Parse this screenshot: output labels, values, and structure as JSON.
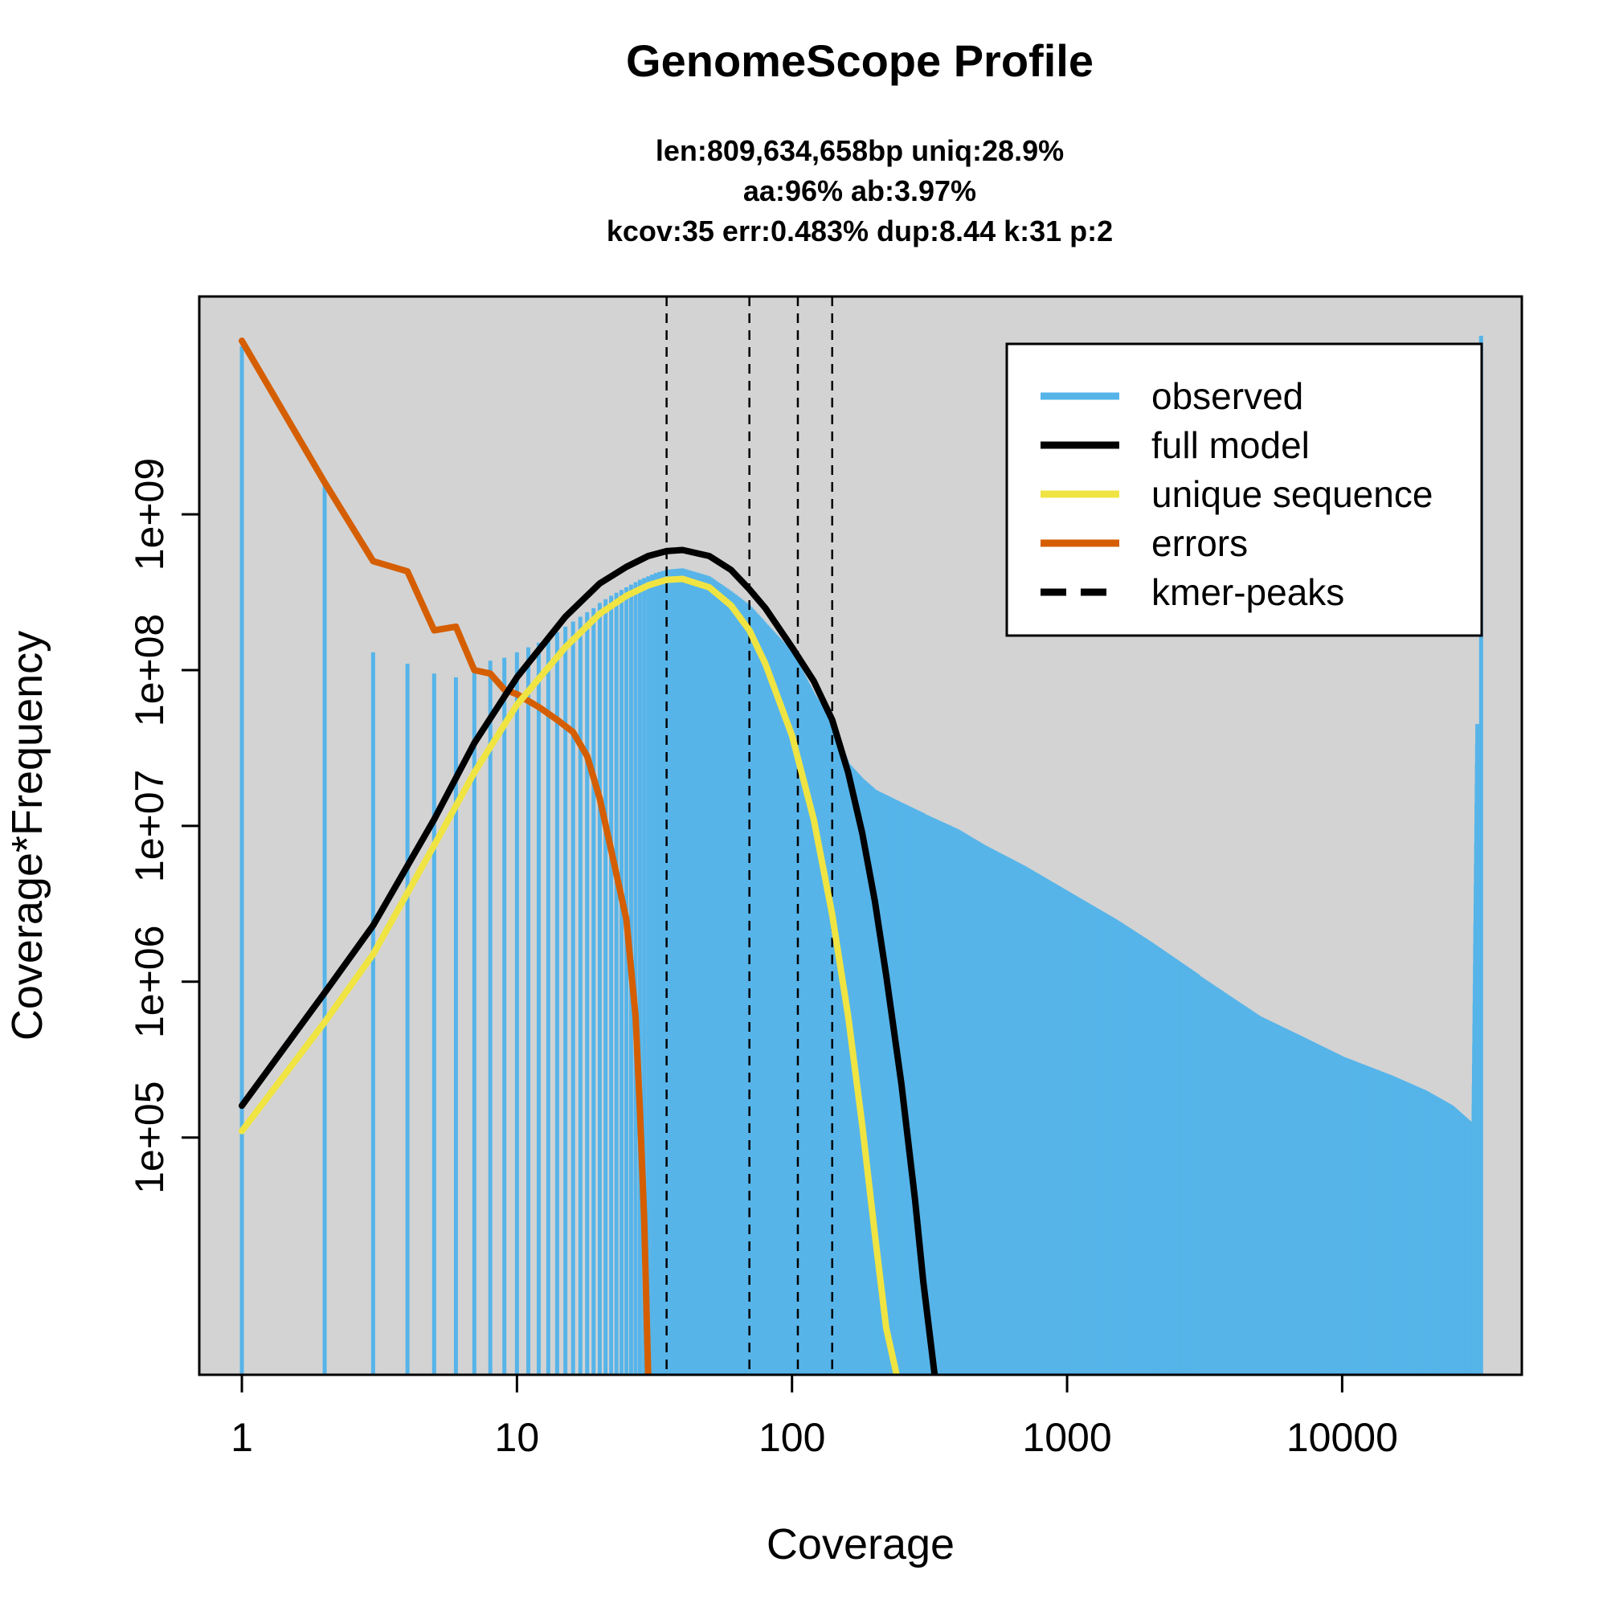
{
  "chart_data": {
    "type": "bar",
    "title": "GenomeScope Profile",
    "subtitle_lines": [
      "len:809,634,658bp uniq:28.9%",
      "aa:96% ab:3.97%",
      "kcov:35 err:0.483%  dup:8.44  k:31 p:2"
    ],
    "xlabel": "Coverage",
    "ylabel": "Coverage*Frequency",
    "x_scale": "log",
    "y_scale": "log",
    "xlim": [
      0.7,
      45000
    ],
    "ylim": [
      3000,
      25000000000
    ],
    "x_ticks": [
      1,
      10,
      100,
      1000,
      10000
    ],
    "x_tick_labels": [
      "1",
      "10",
      "100",
      "1000",
      "10000"
    ],
    "y_ticks": [
      100000,
      1000000,
      10000000,
      100000000,
      1000000000
    ],
    "y_tick_labels": [
      "1e+05",
      "1e+06",
      "1e+07",
      "1e+08",
      "1e+09"
    ],
    "background": "#d3d3d3",
    "kmer_peaks": [
      35,
      70,
      105,
      140
    ],
    "legend": {
      "placement": "top-right",
      "entries": [
        {
          "label": "observed",
          "color": "#56b4e9",
          "style": "solid"
        },
        {
          "label": "full model",
          "color": "#000000",
          "style": "solid"
        },
        {
          "label": "unique sequence",
          "color": "#f0e442",
          "style": "solid"
        },
        {
          "label": "errors",
          "color": "#d55e00",
          "style": "solid"
        },
        {
          "label": "kmer-peaks",
          "color": "#000000",
          "style": "dashed"
        }
      ]
    },
    "series": [
      {
        "name": "observed",
        "color": "#56b4e9",
        "kind": "bars",
        "points": [
          [
            1,
            12000000000
          ],
          [
            2,
            1600000000
          ],
          [
            3,
            130000000
          ],
          [
            4,
            110000000
          ],
          [
            5,
            95000000
          ],
          [
            6,
            90000000
          ],
          [
            7,
            100000000
          ],
          [
            8,
            115000000
          ],
          [
            9,
            120000000
          ],
          [
            10,
            130000000
          ],
          [
            11,
            140000000
          ],
          [
            12,
            150000000
          ],
          [
            13,
            160000000
          ],
          [
            14,
            175000000
          ],
          [
            15,
            190000000
          ],
          [
            16,
            205000000
          ],
          [
            17,
            220000000
          ],
          [
            18,
            235000000
          ],
          [
            19,
            250000000
          ],
          [
            20,
            270000000
          ],
          [
            22,
            300000000
          ],
          [
            25,
            340000000
          ],
          [
            28,
            380000000
          ],
          [
            32,
            420000000
          ],
          [
            35,
            440000000
          ],
          [
            40,
            450000000
          ],
          [
            50,
            400000000
          ],
          [
            60,
            320000000
          ],
          [
            70,
            260000000
          ],
          [
            80,
            200000000
          ],
          [
            100,
            130000000
          ],
          [
            120,
            70000000
          ],
          [
            140,
            45000000
          ],
          [
            160,
            25000000
          ],
          [
            180,
            20000000
          ],
          [
            200,
            17000000
          ],
          [
            250,
            14000000
          ],
          [
            300,
            12000000
          ],
          [
            400,
            9500000
          ],
          [
            500,
            7500000
          ],
          [
            700,
            5500000
          ],
          [
            1000,
            3800000
          ],
          [
            1500,
            2500000
          ],
          [
            2000,
            1800000
          ],
          [
            3000,
            1100000
          ],
          [
            5000,
            600000
          ],
          [
            7000,
            450000
          ],
          [
            10000,
            330000
          ],
          [
            15000,
            250000
          ],
          [
            20000,
            200000
          ],
          [
            25000,
            160000
          ],
          [
            30000,
            120000
          ],
          [
            32000,
            14000000000
          ]
        ]
      },
      {
        "name": "full model",
        "color": "#000000",
        "kind": "line",
        "points": [
          [
            1,
            160000
          ],
          [
            2,
            850000
          ],
          [
            3,
            2300000
          ],
          [
            5,
            11000000
          ],
          [
            7,
            34000000
          ],
          [
            10,
            90000000
          ],
          [
            15,
            220000000
          ],
          [
            20,
            360000000
          ],
          [
            25,
            460000000
          ],
          [
            30,
            540000000
          ],
          [
            35,
            580000000
          ],
          [
            40,
            590000000
          ],
          [
            50,
            540000000
          ],
          [
            60,
            440000000
          ],
          [
            70,
            330000000
          ],
          [
            80,
            250000000
          ],
          [
            100,
            140000000
          ],
          [
            120,
            85000000
          ],
          [
            140,
            48000000
          ],
          [
            160,
            22000000
          ],
          [
            180,
            9000000
          ],
          [
            200,
            3300000
          ],
          [
            220,
            1100000
          ],
          [
            250,
            220000
          ],
          [
            280,
            40000
          ],
          [
            300,
            12000
          ],
          [
            330,
            3000
          ]
        ]
      },
      {
        "name": "unique sequence",
        "color": "#f0e442",
        "kind": "line",
        "points": [
          [
            1,
            110000
          ],
          [
            2,
            550000
          ],
          [
            3,
            1500000
          ],
          [
            5,
            7500000
          ],
          [
            7,
            22000000
          ],
          [
            10,
            60000000
          ],
          [
            15,
            140000000
          ],
          [
            20,
            230000000
          ],
          [
            25,
            300000000
          ],
          [
            30,
            350000000
          ],
          [
            35,
            380000000
          ],
          [
            40,
            385000000
          ],
          [
            50,
            340000000
          ],
          [
            60,
            260000000
          ],
          [
            70,
            180000000
          ],
          [
            80,
            110000000
          ],
          [
            100,
            38000000
          ],
          [
            120,
            11000000
          ],
          [
            140,
            2700000
          ],
          [
            160,
            600000
          ],
          [
            180,
            120000
          ],
          [
            200,
            24000
          ],
          [
            220,
            6000
          ],
          [
            240,
            3000
          ]
        ]
      },
      {
        "name": "errors",
        "color": "#d55e00",
        "kind": "line",
        "points": [
          [
            1,
            13000000000
          ],
          [
            2,
            1600000000
          ],
          [
            3,
            500000000
          ],
          [
            4,
            430000000
          ],
          [
            5,
            180000000
          ],
          [
            6,
            190000000
          ],
          [
            7,
            100000000
          ],
          [
            8,
            95000000
          ],
          [
            9,
            75000000
          ],
          [
            10,
            70000000
          ],
          [
            12,
            58000000
          ],
          [
            14,
            48000000
          ],
          [
            16,
            40000000
          ],
          [
            18,
            28000000
          ],
          [
            20,
            15000000
          ],
          [
            22,
            7000000
          ],
          [
            25,
            2500000
          ],
          [
            27,
            600000
          ],
          [
            28,
            150000
          ],
          [
            29,
            30000
          ],
          [
            30,
            3000
          ]
        ]
      }
    ]
  }
}
